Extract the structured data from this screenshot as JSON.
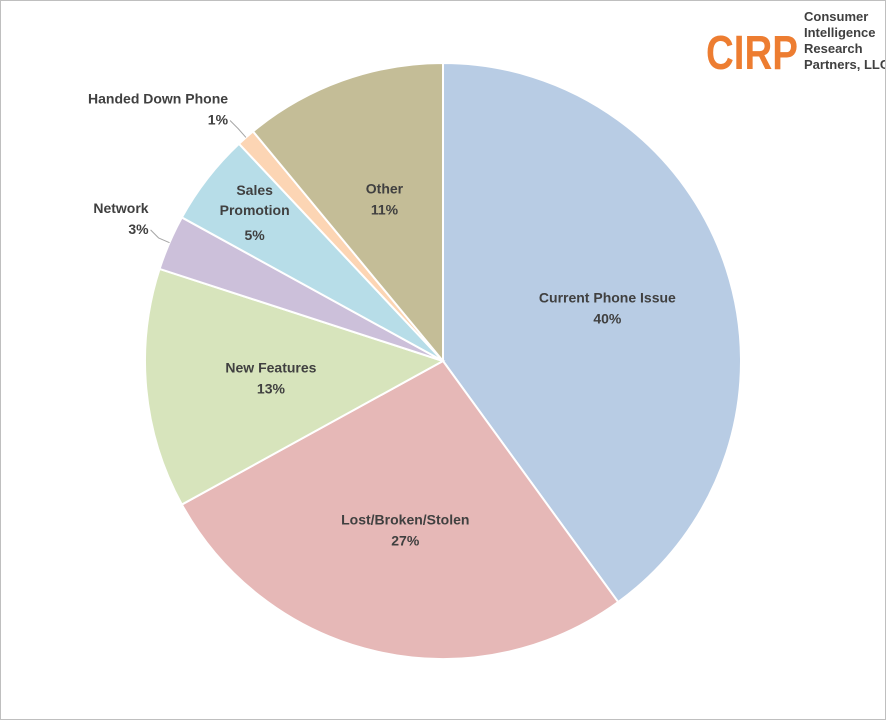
{
  "chart_data": {
    "type": "pie",
    "categories": [
      "Current Phone Issue",
      "Lost/Broken/Stolen",
      "New Features",
      "Network",
      "Sales Promotion",
      "Handed Down Phone",
      "Other"
    ],
    "values": [
      40,
      27,
      13,
      3,
      5,
      1,
      11
    ],
    "value_labels": [
      "40%",
      "27%",
      "13%",
      "3%",
      "5%",
      "1%",
      "11%"
    ],
    "colors": [
      "#b8cce4",
      "#e6b8b7",
      "#d7e4bc",
      "#ccc0da",
      "#b7dde8",
      "#fcd5b4",
      "#c4bd97"
    ]
  },
  "logo": {
    "mark": "CIRP",
    "name_lines": [
      "Consumer",
      "Intelligence",
      "Research",
      "Partners, LLC"
    ]
  }
}
